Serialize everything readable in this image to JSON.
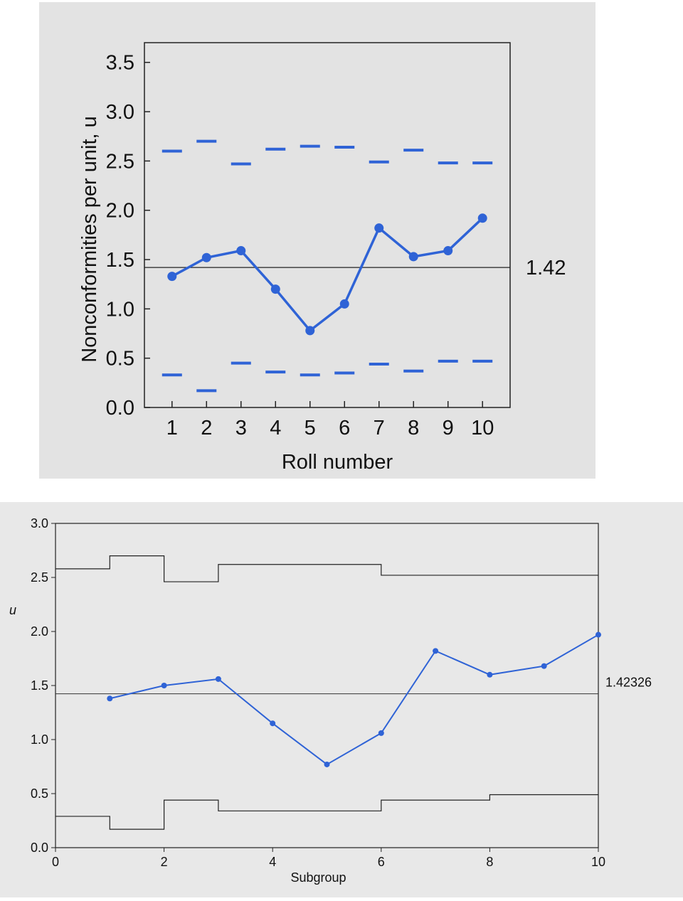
{
  "chart_data": [
    {
      "type": "line",
      "title": "",
      "xlabel": "Roll number",
      "ylabel": "Nonconformities per unit, u",
      "x": [
        1,
        2,
        3,
        4,
        5,
        6,
        7,
        8,
        9,
        10
      ],
      "xlim": [
        0.2,
        10.8
      ],
      "ylim": [
        0,
        3.7
      ],
      "yticks": [
        "0.0",
        "0.5",
        "1.0",
        "1.5",
        "2.0",
        "2.5",
        "3.0",
        "3.5"
      ],
      "xticks": [
        "1",
        "2",
        "3",
        "4",
        "5",
        "6",
        "7",
        "8",
        "9",
        "10"
      ],
      "center_line": 1.42,
      "center_label": "1.42",
      "ucl": [
        2.6,
        2.7,
        2.47,
        2.62,
        2.65,
        2.64,
        2.49,
        2.61,
        2.48,
        2.48
      ],
      "lcl": [
        0.33,
        0.17,
        0.45,
        0.36,
        0.33,
        0.35,
        0.44,
        0.37,
        0.47,
        0.47
      ],
      "series": [
        {
          "values": [
            1.33,
            1.52,
            1.59,
            1.2,
            0.78,
            1.05,
            1.82,
            1.53,
            1.59,
            1.92
          ],
          "color": "#2f63d6"
        }
      ]
    },
    {
      "type": "line",
      "title": "",
      "xlabel": "Subgroup",
      "ylabel": "u",
      "x": [
        1,
        2,
        3,
        4,
        5,
        6,
        7,
        8,
        9,
        10
      ],
      "xlim": [
        0,
        10
      ],
      "ylim": [
        0,
        3.0
      ],
      "yticks": [
        "0.0",
        "0.5",
        "1.0",
        "1.5",
        "2.0",
        "2.5",
        "3.0"
      ],
      "xticks": [
        "0",
        "2",
        "4",
        "6",
        "8",
        "10"
      ],
      "center_line": 1.42326,
      "center_label": "1.42326",
      "ucl": [
        2.58,
        2.7,
        2.46,
        2.62,
        2.62,
        2.62,
        2.52,
        2.52,
        2.52,
        2.52
      ],
      "lcl": [
        0.29,
        0.17,
        0.44,
        0.34,
        0.34,
        0.34,
        0.44,
        0.44,
        0.49,
        0.49
      ],
      "series": [
        {
          "values": [
            1.38,
            1.5,
            1.56,
            1.15,
            0.77,
            1.06,
            1.82,
            1.6,
            1.68,
            1.97
          ],
          "color": "#2f63d6"
        }
      ]
    }
  ]
}
